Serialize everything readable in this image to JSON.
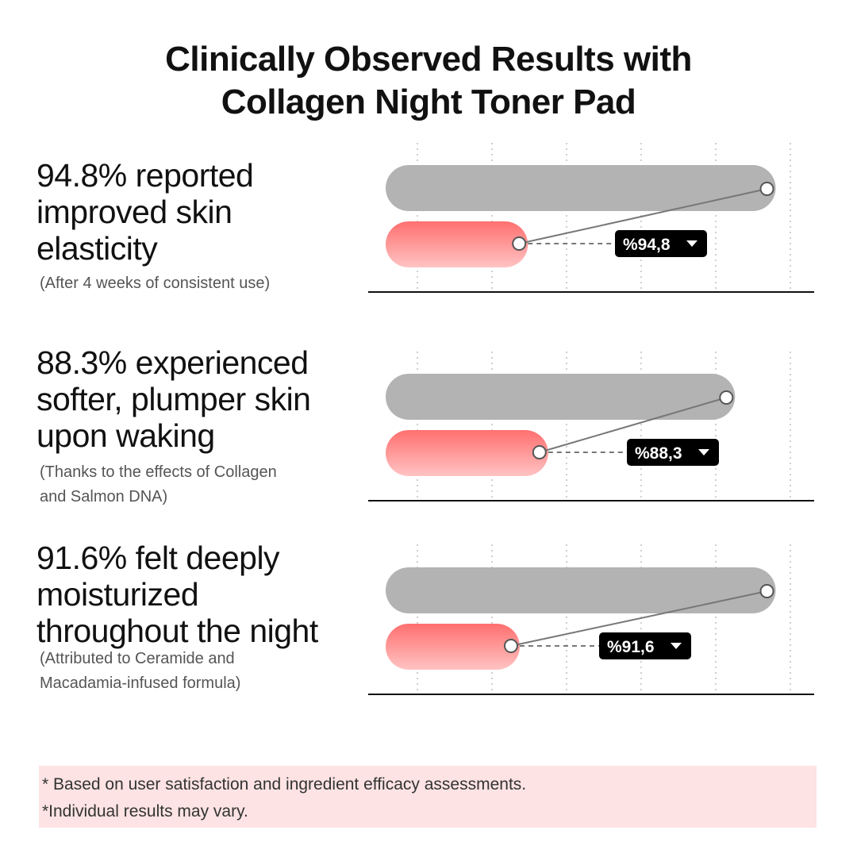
{
  "title": {
    "line1": "Clinically Observed Results with",
    "line2": "Collagen Night Toner Pad"
  },
  "colors": {
    "bar_before": "#b3b3b3",
    "bar_after_top": "#ff6f6f",
    "bar_after_bottom": "#ffc3c3",
    "label_bg": "#000000",
    "connector": "#777777",
    "footnote_bg": "#fde3e3"
  },
  "stats": [
    {
      "headline_lines": [
        "94.8% reported",
        "improved skin",
        "elasticity"
      ],
      "note_lines": [
        "(After 4 weeks of consistent use)"
      ],
      "label": "%94,8",
      "label_icon": "caret-down-icon"
    },
    {
      "headline_lines": [
        "88.3% experienced",
        "softer, plumper skin",
        "upon waking"
      ],
      "note_lines": [
        "(Thanks to the effects of Collagen",
        "and Salmon DNA)"
      ],
      "label": "%88,3",
      "label_icon": "caret-down-icon"
    },
    {
      "headline_lines": [
        "91.6% felt deeply",
        "moisturized",
        "throughout the night"
      ],
      "note_lines": [
        "(Attributed to Ceramide and",
        "Macadamia-infused formula)"
      ],
      "label": "%91,6",
      "label_icon": "caret-down-icon"
    }
  ],
  "chart_data": [
    {
      "type": "bar",
      "gridlines": "dotted-vertical",
      "series": [
        {
          "name": "",
          "values": [
            0.96
          ]
        },
        {
          "name": "",
          "values": [
            0.35
          ]
        }
      ],
      "data_label": "%94,8"
    },
    {
      "type": "bar",
      "gridlines": "dotted-vertical",
      "series": [
        {
          "name": "",
          "values": [
            0.86
          ]
        },
        {
          "name": "",
          "values": [
            0.4
          ]
        }
      ],
      "data_label": "%88,3"
    },
    {
      "type": "bar",
      "gridlines": "dotted-vertical",
      "series": [
        {
          "name": "",
          "values": [
            0.96
          ]
        },
        {
          "name": "",
          "values": [
            0.33
          ]
        }
      ],
      "data_label": "%91,6"
    }
  ],
  "footnotes": [
    "* Based on user satisfaction and ingredient efficacy assessments.",
    " *Individual results may vary."
  ]
}
